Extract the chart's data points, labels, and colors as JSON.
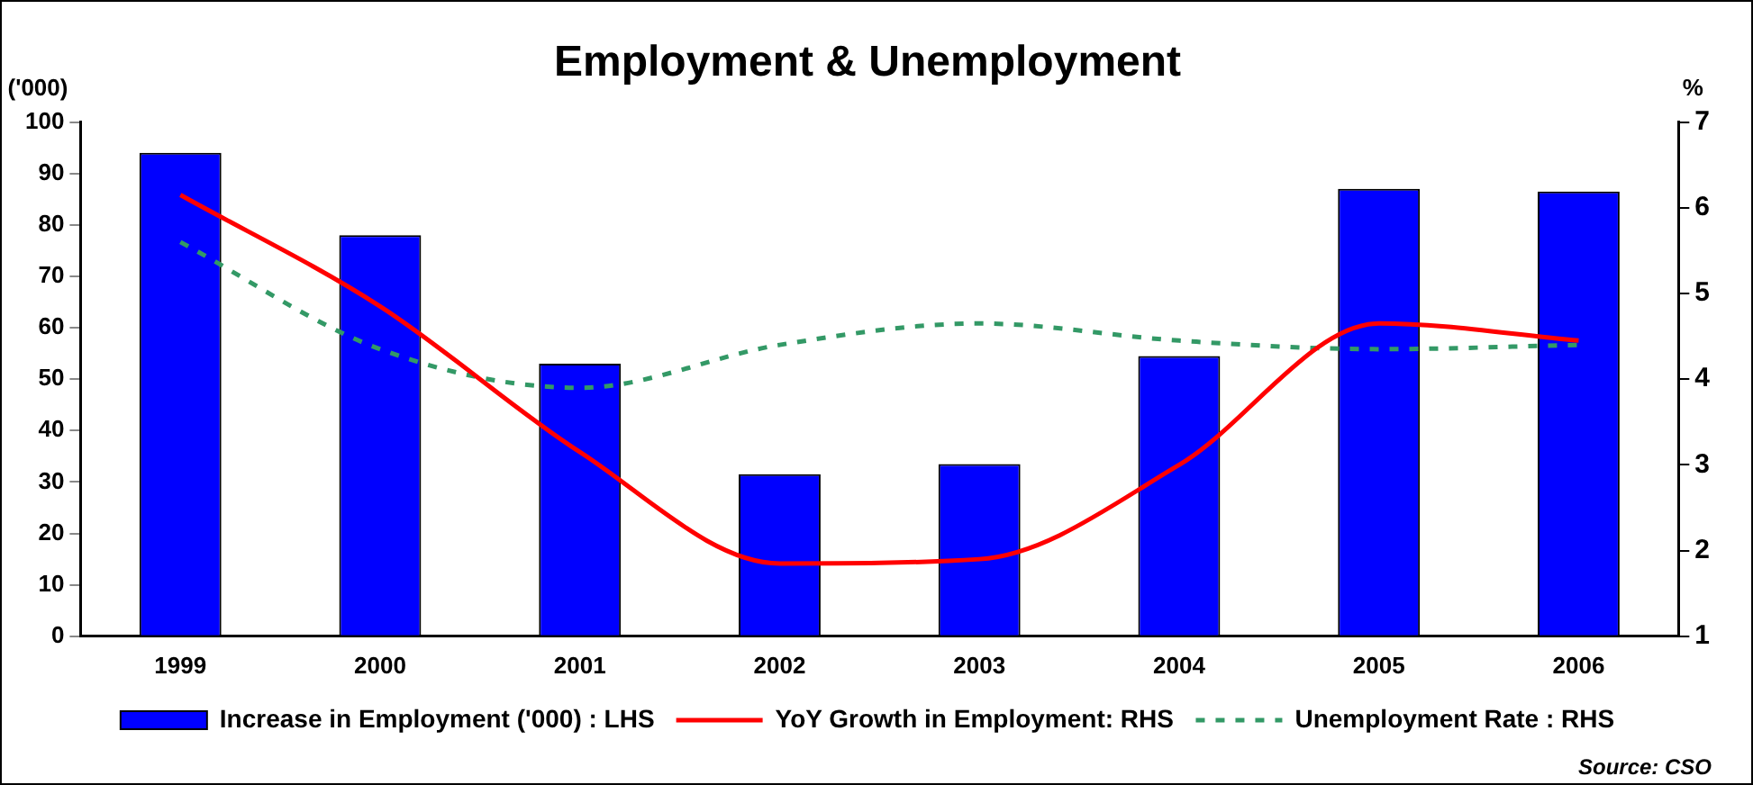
{
  "chart_data": {
    "type": "bar",
    "title": "Employment & Unemployment",
    "ylabel": "('000)",
    "y2label": "%",
    "categories": [
      "1999",
      "2000",
      "2001",
      "2002",
      "2003",
      "2004",
      "2005",
      "2006"
    ],
    "series": [
      {
        "name": "Increase in Employment ('000) : LHS",
        "color": "#0000ff",
        "values": [
          94,
          78,
          53,
          31.5,
          33.5,
          54.5,
          87,
          86.5
        ]
      },
      {
        "name": "YoY Growth in Employment: RHS",
        "type": "line",
        "axis": "y2",
        "color": "#ff0000",
        "line_style": "solid",
        "values": [
          6.15,
          4.85,
          3.15,
          1.85,
          1.9,
          3.0,
          4.65,
          4.45
        ]
      },
      {
        "name": "Unemployment Rate : RHS",
        "type": "line",
        "axis": "y2",
        "color": "#339966",
        "line_style": "dashed",
        "values": [
          5.6,
          4.35,
          3.9,
          4.4,
          4.65,
          4.45,
          4.35,
          4.4
        ]
      }
    ],
    "ylim": [
      0,
      100
    ],
    "yticks": [
      0,
      10,
      20,
      30,
      40,
      50,
      60,
      70,
      80,
      90,
      100
    ],
    "y2lim": [
      1,
      7
    ],
    "y2ticks": [
      1,
      2,
      3,
      4,
      5,
      6,
      7
    ],
    "grid": false,
    "legend": "bottom",
    "marker": "none",
    "annotations": [
      "Source: CSO"
    ]
  }
}
